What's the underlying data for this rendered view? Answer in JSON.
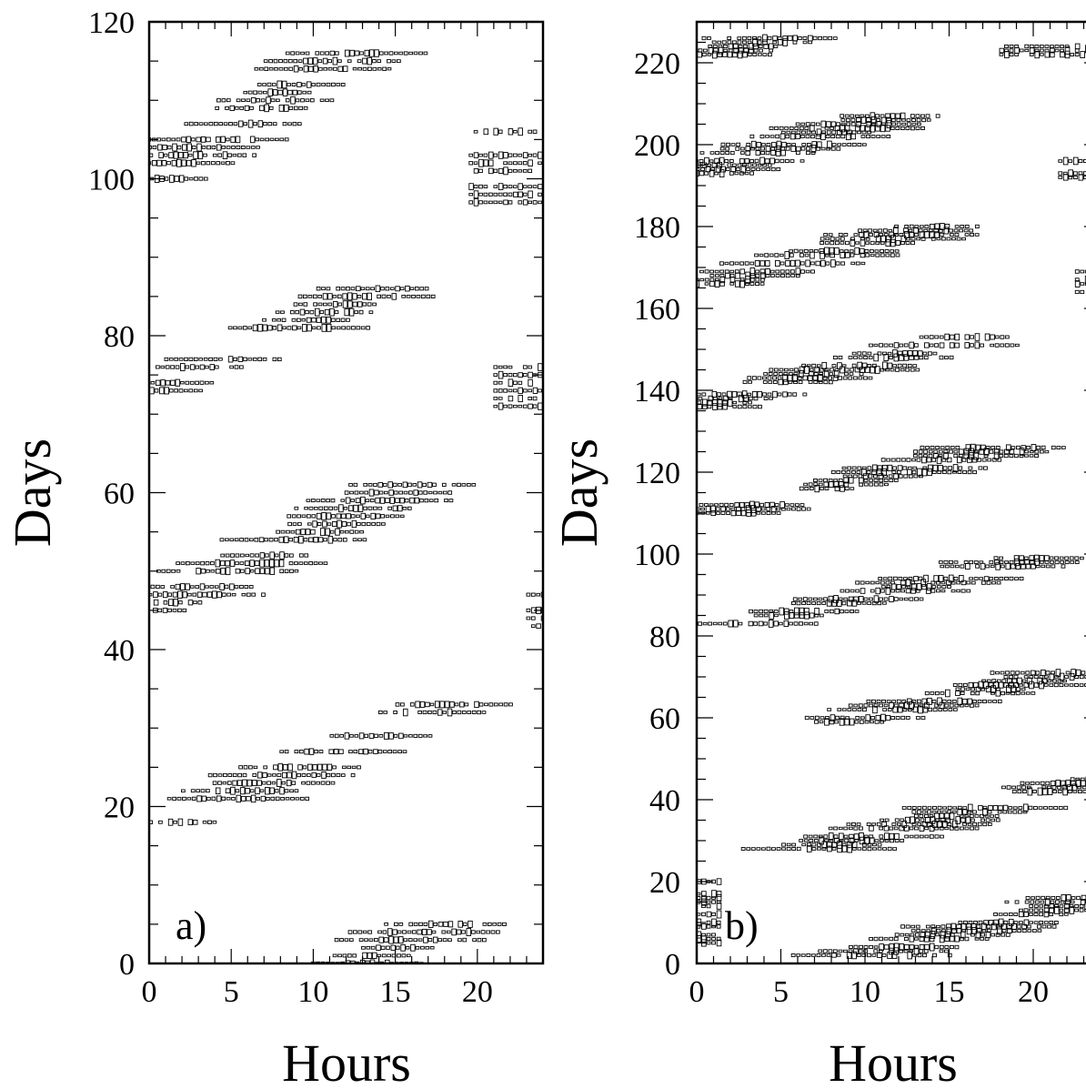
{
  "chart_data": [
    {
      "type": "heatmap",
      "panel_label": "a)",
      "xlabel": "Hours",
      "ylabel": "Days",
      "xlim": [
        0,
        24
      ],
      "ylim": [
        0,
        120
      ],
      "xticks": [
        0,
        5,
        10,
        15,
        20
      ],
      "yticks": [
        0,
        20,
        40,
        60,
        80,
        100,
        120
      ],
      "grid": false,
      "bands": [
        {
          "start_day": 0,
          "end_day": 5,
          "start_hour": 13,
          "end_hour": 18
        },
        {
          "start_day": 17,
          "end_day": 33,
          "start_hour": 0.5,
          "end_hour": 18
        },
        {
          "start_day": 45,
          "end_day": 61,
          "start_hour": 0,
          "end_hour": 16
        },
        {
          "start_day": 73,
          "end_day": 86,
          "start_hour": 0,
          "end_hour": 14
        },
        {
          "start_day": 100,
          "end_day": 116,
          "start_hour": 0,
          "end_hour": 12
        }
      ],
      "edge_blocks": [
        {
          "day_from": 43,
          "day_to": 47,
          "hour_from": 23,
          "hour_to": 24
        },
        {
          "day_from": 70,
          "day_to": 76,
          "hour_from": 21,
          "hour_to": 24
        },
        {
          "day_from": 97,
          "day_to": 106,
          "hour_from": 19.5,
          "hour_to": 24
        }
      ]
    },
    {
      "type": "heatmap",
      "panel_label": "b)",
      "xlabel": "Hours",
      "ylabel": "Days",
      "xlim": [
        0,
        24
      ],
      "ylim": [
        0,
        230
      ],
      "xticks": [
        0,
        5,
        10,
        15,
        20
      ],
      "yticks": [
        0,
        20,
        40,
        60,
        80,
        100,
        120,
        140,
        160,
        180,
        200,
        220
      ],
      "grid": false,
      "bands": [
        {
          "start_day": 0,
          "end_day": 16,
          "start_hour": 8.5,
          "end_hour": 24
        },
        {
          "start_day": 28,
          "end_day": 45,
          "start_hour": 7,
          "end_hour": 24
        },
        {
          "start_day": 56,
          "end_day": 71,
          "start_hour": 5,
          "end_hour": 22
        },
        {
          "start_day": 83,
          "end_day": 99,
          "start_hour": 3.5,
          "end_hour": 20
        },
        {
          "start_day": 110,
          "end_day": 126,
          "start_hour": 1.5,
          "end_hour": 18
        },
        {
          "start_day": 136,
          "end_day": 154,
          "start_hour": 0,
          "end_hour": 17
        },
        {
          "start_day": 165,
          "end_day": 181,
          "start_hour": 0,
          "end_hour": 15
        },
        {
          "start_day": 193,
          "end_day": 209,
          "start_hour": 0,
          "end_hour": 13
        },
        {
          "start_day": 221,
          "end_day": 226,
          "start_hour": 0,
          "end_hour": 5
        }
      ],
      "edge_blocks": [
        {
          "day_from": 5,
          "day_to": 20,
          "hour_from": 0,
          "hour_to": 1.5
        },
        {
          "day_from": 164,
          "day_to": 170,
          "hour_from": 22.5,
          "hour_to": 24
        },
        {
          "day_from": 192,
          "day_to": 196,
          "hour_from": 21.5,
          "hour_to": 24
        },
        {
          "day_from": 218,
          "day_to": 225,
          "hour_from": 18,
          "hour_to": 24
        }
      ]
    }
  ]
}
